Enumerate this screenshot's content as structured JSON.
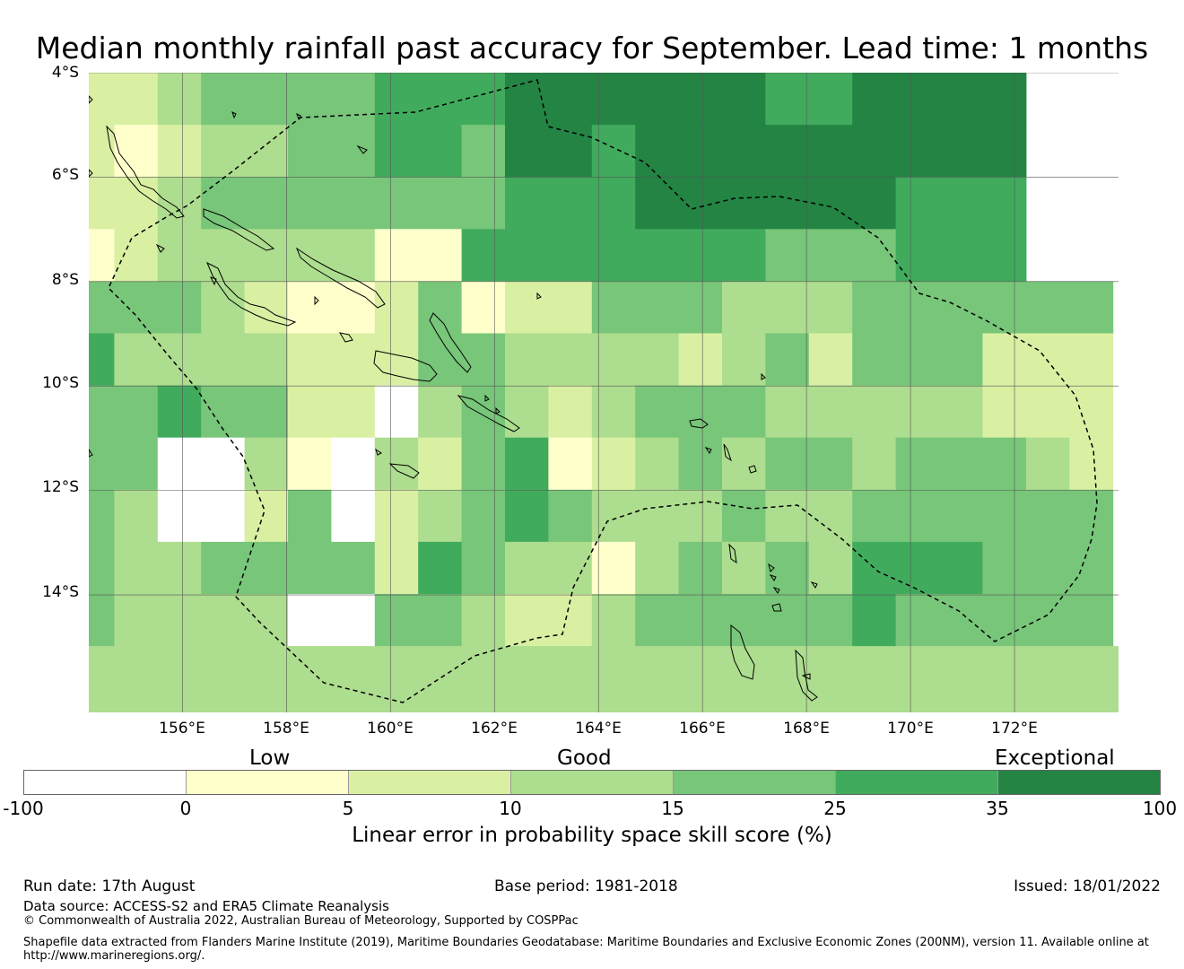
{
  "title": "Median monthly rainfall past accuracy for September. Lead time: 1 months",
  "map": {
    "lat_labels": [
      "4°S",
      "6°S",
      "8°S",
      "10°S",
      "12°S",
      "14°S"
    ],
    "lon_labels": [
      "156°E",
      "158°E",
      "160°E",
      "162°E",
      "164°E",
      "166°E",
      "168°E",
      "170°E",
      "172°E"
    ],
    "lon_start": 154.2,
    "lon_end": 174.0,
    "lat_start": -4.0,
    "lat_end": -16.25,
    "grid_legend": "0=no data, 1=0-5, 2=5-10, 3=10-15, 4=15-25, 5=25-35, 6=35-100",
    "grid": [
      "2234444555666666556666",
      "2123344554665666666666",
      "2234444444555666666555",
      "1233333115555555444555",
      "444321124122444333444444",
      "533332224433332342444222",
      "445442203432344433333222",
      "440031032451234344344432",
      "430024023454333433444444",
      "433444425433134343555444",
      "433330044322344444544444"
    ],
    "colors": [
      "#ffffff",
      "#ffffcc",
      "#d9f0a3",
      "#addd8e",
      "#78c679",
      "#41ab5d",
      "#238443"
    ],
    "eez_outline": "Solomon Islands, Vanuatu and Fiji maritime boundaries (dashed)"
  },
  "legend": {
    "categories": [
      "Low",
      "Good",
      "Exceptional"
    ],
    "colors": [
      "#ffffff",
      "#ffffcc",
      "#d9f0a3",
      "#addd8e",
      "#78c679",
      "#41ab5d",
      "#238443"
    ],
    "ticks": [
      "-100",
      "0",
      "5",
      "10",
      "15",
      "25",
      "35",
      "100"
    ],
    "label": "Linear error in probability space skill score (%)"
  },
  "footer": {
    "run_date": "Run date: 17th August",
    "base_period": "Base period: 1981-2018",
    "issued": "Issued: 18/01/2022",
    "data_source": "Data source: ACCESS-S2 and ERA5 Climate Reanalysis",
    "copyright": "© Commonwealth of Australia 2022, Australian Bureau of Meteorology, Supported by COSPPac",
    "shapefile_1": "Shapefile data extracted from Flanders Marine Institute (2019), Maritime Boundaries Geodatabase: Maritime Boundaries and Exclusive Economic Zones (200NM), version 11. Available online at",
    "shapefile_2": "http://www.marineregions.org/."
  }
}
